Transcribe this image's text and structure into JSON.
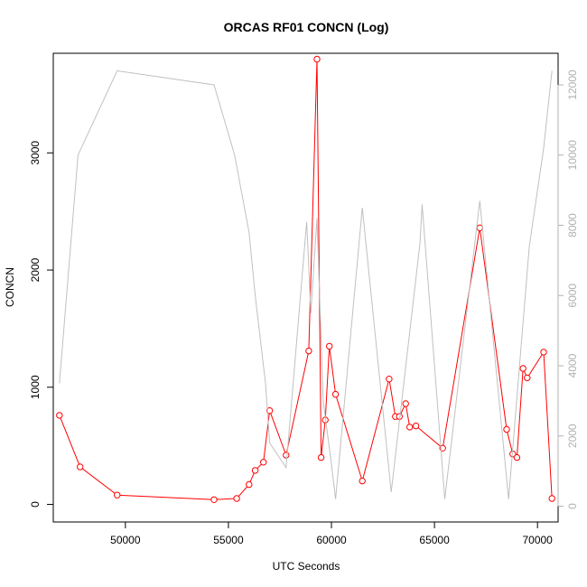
{
  "chart_data": {
    "type": "line",
    "title": "ORCAS RF01 CONCN (Log)",
    "xlabel": "UTC Seconds",
    "ylabel": "CONCN",
    "xlim": [
      46500,
      71000
    ],
    "ylim": [
      -150,
      3850
    ],
    "y2lim": [
      -450,
      12900
    ],
    "x_ticks": [
      50000,
      55000,
      60000,
      65000,
      70000
    ],
    "y_ticks": [
      0,
      1000,
      2000,
      3000
    ],
    "y2_ticks": [
      0,
      2000,
      4000,
      6000,
      8000,
      10000,
      12000
    ],
    "grid": false,
    "series": [
      {
        "axis": "left",
        "color": "#ff0000",
        "markers": true,
        "x": [
          46800,
          47800,
          49600,
          54300,
          55400,
          56000,
          56300,
          56700,
          57000,
          57800,
          58900,
          59300,
          59500,
          59700,
          59900,
          60200,
          61500,
          62800,
          63100,
          63300,
          63600,
          63800,
          64100,
          65400,
          67200,
          68500,
          68800,
          69000,
          69300,
          69500,
          70300,
          70700
        ],
        "y": [
          760,
          320,
          80,
          40,
          50,
          170,
          290,
          360,
          800,
          420,
          1310,
          3800,
          400,
          720,
          1350,
          940,
          200,
          1070,
          750,
          750,
          860,
          660,
          670,
          480,
          2360,
          640,
          430,
          400,
          1160,
          1080,
          1300,
          50
        ]
      },
      {
        "axis": "right",
        "color": "#c0c0c0",
        "markers": false,
        "x": [
          46800,
          47700,
          49600,
          54300,
          55300,
          56000,
          56300,
          56800,
          57000,
          57800,
          58800,
          59000,
          59300,
          59600,
          60000,
          60200,
          61500,
          62900,
          64300,
          64400,
          65500,
          67200,
          68600,
          69600,
          70300,
          70700
        ],
        "y": [
          3500,
          10000,
          12400,
          12000,
          10000,
          7800,
          6000,
          3500,
          1800,
          1100,
          8100,
          5500,
          8200,
          3000,
          1200,
          200,
          8500,
          400,
          7500,
          8600,
          200,
          8700,
          200,
          7400,
          10200,
          12400
        ]
      }
    ]
  }
}
